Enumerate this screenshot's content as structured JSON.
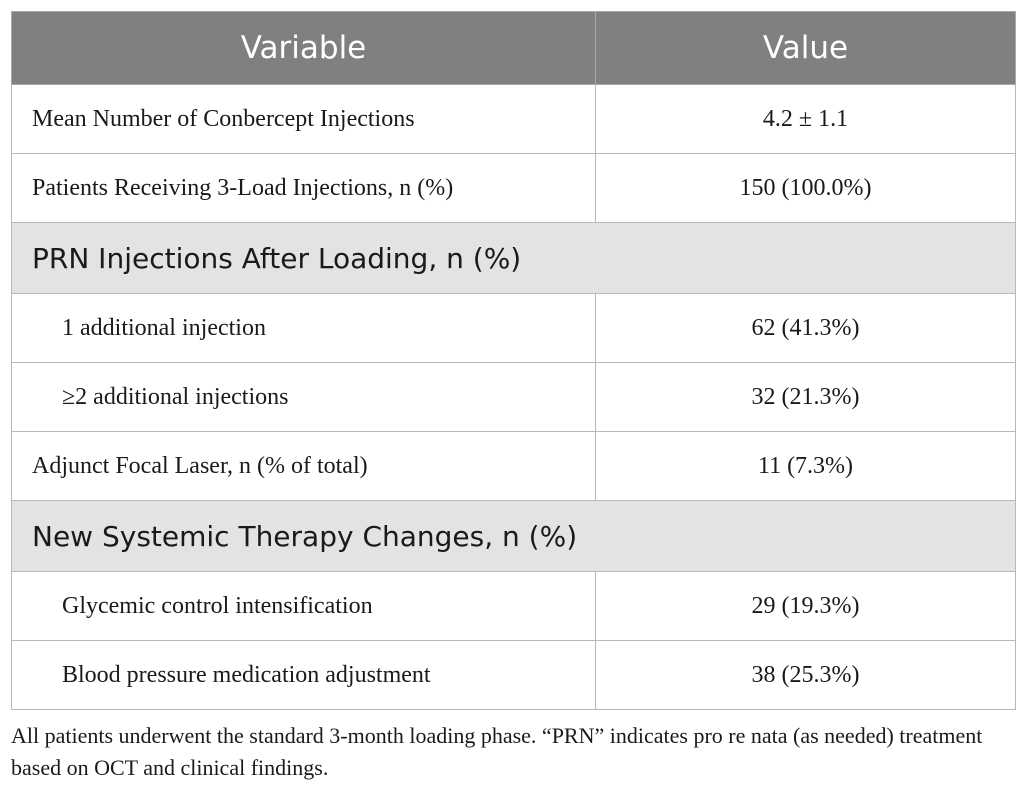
{
  "table": {
    "headers": [
      "Variable",
      "Value"
    ],
    "rows": [
      {
        "label": "Mean Number of Conbercept Injections",
        "value": "4.2 ± 1.1"
      },
      {
        "label": "Patients Receiving 3-Load Injections, n (%)",
        "value": "150 (100.0%)"
      },
      {
        "section": "PRN Injections After Loading, n (%)"
      },
      {
        "label": "1 additional injection",
        "value": "62 (41.3%)"
      },
      {
        "label": "≥2 additional injections",
        "value": "32 (21.3%)"
      },
      {
        "label": "Adjunct Focal Laser, n (% of total)",
        "value": "11 (7.3%)"
      },
      {
        "section": "New Systemic Therapy Changes, n (%)"
      },
      {
        "label": "Glycemic control intensification",
        "value": "29 (19.3%)"
      },
      {
        "label": "Blood pressure medication adjustment",
        "value": "38 (25.3%)"
      }
    ]
  },
  "footnote": "All patients underwent the standard 3-month loading phase. “PRN” indicates pro re nata (as needed) treatment based on OCT and clinical findings.",
  "colors": {
    "header_bg": "#808080",
    "section_bg": "#e3e3e3",
    "border": "#b8b8b8"
  }
}
